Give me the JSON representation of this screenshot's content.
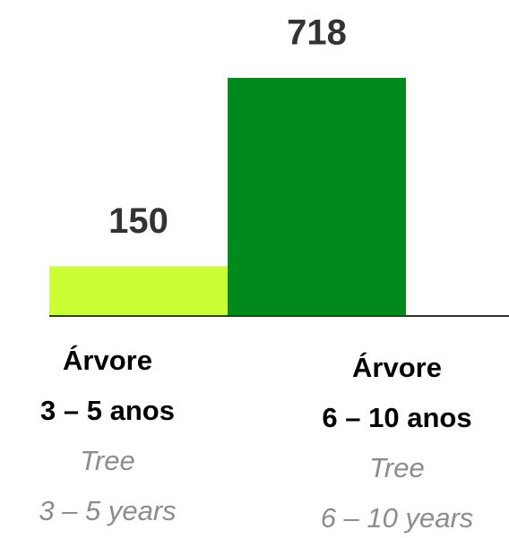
{
  "chart_data": {
    "type": "bar",
    "categories": [
      [
        "Árvore",
        "3 – 5 anos"
      ],
      [
        "Árvore",
        "6 – 10 anos"
      ]
    ],
    "translations": [
      [
        "Tree",
        "3 – 5 years"
      ],
      [
        "Tree",
        "6 – 10 years"
      ]
    ],
    "values": [
      150,
      718
    ],
    "colors": [
      "#ccff33",
      "#008a1c"
    ],
    "ylim": [
      0,
      950
    ]
  }
}
